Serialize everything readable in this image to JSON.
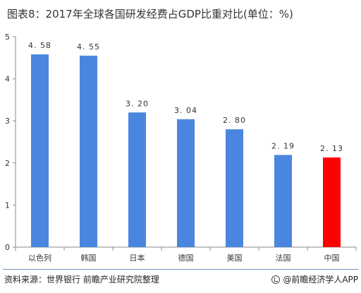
{
  "header": {
    "title": "图表8：2017年全球各国研发经费占GDP比重对比(单位：%)"
  },
  "footer": {
    "source": "资料来源：世界银行 前瞻产业研究院整理",
    "brand": "@前瞻经济学人APP"
  },
  "colors": {
    "bar": "#4a86e0",
    "highlight": "#ff0000",
    "axis": "#888888"
  },
  "chart_data": {
    "type": "bar",
    "title": "图表8：2017年全球各国研发经费占GDP比重对比(单位：%)",
    "categories": [
      "以色列",
      "韩国",
      "日本",
      "德国",
      "美国",
      "法国",
      "中国"
    ],
    "values": [
      4.58,
      4.55,
      3.2,
      3.04,
      2.8,
      2.19,
      2.13
    ],
    "value_labels": [
      "4. 58",
      "4. 55",
      "3. 20",
      "3. 04",
      "2. 80",
      "2. 19",
      "2. 13"
    ],
    "highlight_index": 6,
    "ylim": [
      0,
      5
    ],
    "yticks": [
      0,
      1,
      2,
      3,
      4,
      5
    ],
    "grid": false,
    "legend": "none",
    "xlabel": "",
    "ylabel": ""
  }
}
